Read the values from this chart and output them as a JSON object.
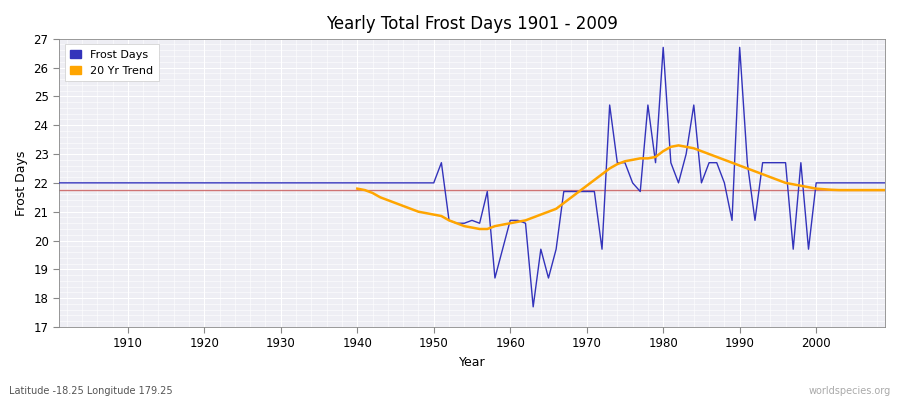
{
  "title": "Yearly Total Frost Days 1901 - 2009",
  "xlabel": "Year",
  "ylabel": "Frost Days",
  "subtitle": "Latitude -18.25 Longitude 179.25",
  "watermark": "worldspecies.org",
  "ylim": [
    17,
    27
  ],
  "yticks": [
    17,
    18,
    19,
    20,
    21,
    22,
    23,
    24,
    25,
    26,
    27
  ],
  "xlim": [
    1901,
    2009
  ],
  "xticks": [
    1910,
    1920,
    1930,
    1940,
    1950,
    1960,
    1970,
    1980,
    1990,
    2000
  ],
  "frost_color": "#3333bb",
  "trend_color": "#FFA500",
  "mean_color": "#cc6666",
  "bg_color": "#eeeef4",
  "fig_color": "#ffffff",
  "frost_years": [
    1901,
    1902,
    1903,
    1904,
    1905,
    1906,
    1907,
    1908,
    1909,
    1910,
    1911,
    1912,
    1913,
    1914,
    1915,
    1916,
    1917,
    1918,
    1919,
    1920,
    1921,
    1922,
    1923,
    1924,
    1925,
    1926,
    1927,
    1928,
    1929,
    1930,
    1931,
    1932,
    1933,
    1934,
    1935,
    1936,
    1937,
    1938,
    1939,
    1940,
    1941,
    1942,
    1943,
    1944,
    1945,
    1946,
    1947,
    1948,
    1949,
    1950,
    1951,
    1952,
    1953,
    1954,
    1955,
    1956,
    1957,
    1958,
    1959,
    1960,
    1961,
    1962,
    1963,
    1964,
    1965,
    1966,
    1967,
    1968,
    1969,
    1970,
    1971,
    1972,
    1973,
    1974,
    1975,
    1976,
    1977,
    1978,
    1979,
    1980,
    1981,
    1982,
    1983,
    1984,
    1985,
    1986,
    1987,
    1988,
    1989,
    1990,
    1991,
    1992,
    1993,
    1994,
    1995,
    1996,
    1997,
    1998,
    1999,
    2000,
    2001,
    2002,
    2003,
    2004,
    2005,
    2006,
    2007,
    2008,
    2009
  ],
  "frost_values": [
    22,
    22,
    22,
    22,
    22,
    22,
    22,
    22,
    22,
    22,
    22,
    22,
    22,
    22,
    22,
    22,
    22,
    22,
    22,
    22,
    22,
    22,
    22,
    22,
    22,
    22,
    22,
    22,
    22,
    22,
    22,
    22,
    22,
    22,
    22,
    22,
    22,
    22,
    22,
    22,
    22,
    22,
    22,
    22,
    22,
    22,
    22,
    22,
    22,
    22,
    22.7,
    20.7,
    20.6,
    20.6,
    20.7,
    20.6,
    21.7,
    18.7,
    19.7,
    20.7,
    20.7,
    20.6,
    17.7,
    19.7,
    18.7,
    19.7,
    21.7,
    21.7,
    21.7,
    21.7,
    21.7,
    19.7,
    24.7,
    22.7,
    22.7,
    22.0,
    21.7,
    24.7,
    22.7,
    26.7,
    22.7,
    22.0,
    23.0,
    24.7,
    22.0,
    22.7,
    22.7,
    22.0,
    20.7,
    26.7,
    22.7,
    20.7,
    22.7,
    22.7,
    22.7,
    22.7,
    19.7,
    22.7,
    19.7,
    22,
    22,
    22,
    22,
    22,
    22,
    22,
    22,
    22,
    22
  ],
  "trend_start_year": 1940,
  "trend_years": [
    1940,
    1941,
    1942,
    1943,
    1944,
    1945,
    1946,
    1947,
    1948,
    1949,
    1950,
    1951,
    1952,
    1953,
    1954,
    1955,
    1956,
    1957,
    1958,
    1959,
    1960,
    1961,
    1962,
    1963,
    1964,
    1965,
    1966,
    1967,
    1968,
    1969,
    1970,
    1971,
    1972,
    1973,
    1974,
    1975,
    1976,
    1977,
    1978,
    1979,
    1980,
    1981,
    1982,
    1983,
    1984,
    1985,
    1986,
    1987,
    1988,
    1989,
    1990,
    1991,
    1992,
    1993,
    1994,
    1995,
    1996,
    1997,
    1998,
    1999,
    2000,
    2001,
    2002,
    2003,
    2004,
    2005,
    2006,
    2007,
    2008,
    2009
  ],
  "trend_values": [
    21.8,
    21.75,
    21.65,
    21.5,
    21.4,
    21.3,
    21.2,
    21.1,
    21.0,
    20.95,
    20.9,
    20.85,
    20.7,
    20.6,
    20.5,
    20.45,
    20.4,
    20.4,
    20.5,
    20.55,
    20.6,
    20.65,
    20.7,
    20.8,
    20.9,
    21.0,
    21.1,
    21.3,
    21.5,
    21.7,
    21.9,
    22.1,
    22.3,
    22.5,
    22.65,
    22.75,
    22.8,
    22.85,
    22.85,
    22.9,
    23.1,
    23.25,
    23.3,
    23.25,
    23.2,
    23.1,
    23.0,
    22.9,
    22.8,
    22.7,
    22.6,
    22.5,
    22.4,
    22.3,
    22.2,
    22.1,
    22.0,
    21.95,
    21.9,
    21.85,
    21.8,
    21.78,
    21.76,
    21.75,
    21.75,
    21.75,
    21.75,
    21.75,
    21.75,
    21.75
  ],
  "mean_val": 21.75
}
